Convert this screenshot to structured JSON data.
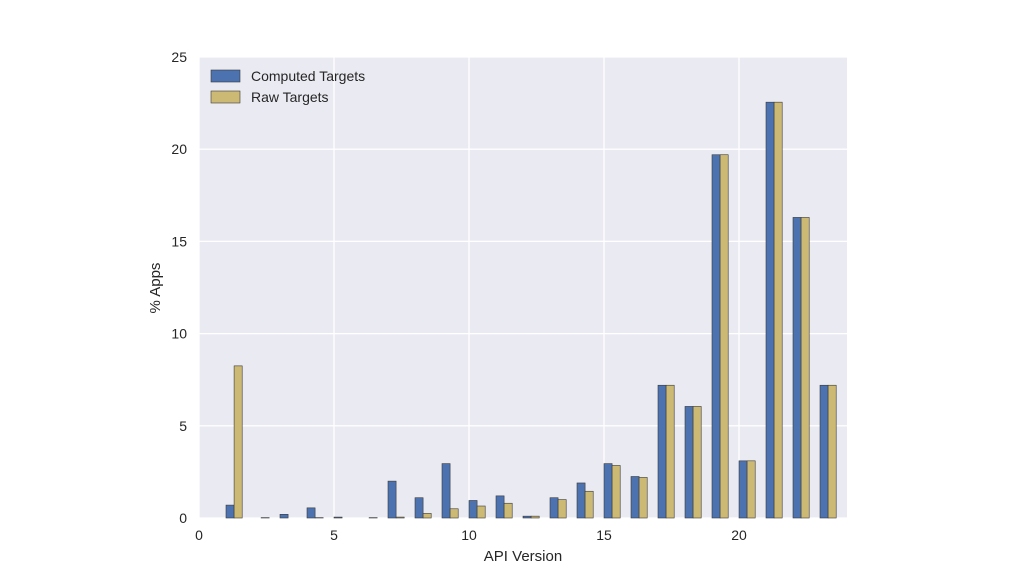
{
  "chart_data": {
    "type": "bar",
    "xlabel": "API Version",
    "ylabel": "% Apps",
    "xlim": [
      0,
      24
    ],
    "ylim": [
      0,
      25
    ],
    "xticks": [
      0,
      5,
      10,
      15,
      20
    ],
    "yticks": [
      0,
      5,
      10,
      15,
      20,
      25
    ],
    "grid": true,
    "legend_position": "top-left",
    "categories": [
      1,
      2,
      3,
      4,
      5,
      6,
      7,
      8,
      9,
      10,
      11,
      12,
      13,
      14,
      15,
      16,
      17,
      18,
      19,
      20,
      21,
      22,
      23
    ],
    "series": [
      {
        "name": "Computed Targets",
        "color": "#4c72b0",
        "values": [
          0.7,
          0.0,
          0.2,
          0.55,
          0.05,
          0.0,
          2.0,
          1.1,
          2.95,
          0.95,
          1.2,
          0.1,
          1.1,
          1.9,
          2.95,
          2.25,
          7.2,
          6.05,
          19.7,
          3.1,
          22.55,
          16.3,
          7.2
        ]
      },
      {
        "name": "Raw Targets",
        "color": "#ccb974",
        "values": [
          8.25,
          0.02,
          0.0,
          0.02,
          0.0,
          0.02,
          0.05,
          0.25,
          0.5,
          0.65,
          0.8,
          0.1,
          1.0,
          1.45,
          2.85,
          2.2,
          7.2,
          6.05,
          19.7,
          3.1,
          22.55,
          16.3,
          7.2
        ]
      }
    ]
  }
}
